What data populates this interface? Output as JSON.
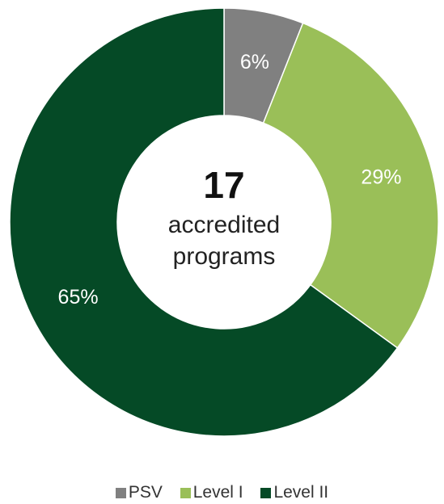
{
  "chart_data": {
    "type": "pie",
    "categories": [
      "PSV",
      "Level I",
      "Level II"
    ],
    "values": [
      6,
      29,
      65
    ],
    "value_labels": [
      "6%",
      "29%",
      "65%"
    ],
    "colors": [
      "#808080",
      "#9ABF58",
      "#054A26"
    ],
    "center_text": {
      "number": "17",
      "line1": "accredited",
      "line2": "programs"
    },
    "legend": [
      {
        "label": "PSV",
        "color": "#808080"
      },
      {
        "label": "Level I",
        "color": "#9ABF58"
      },
      {
        "label": "Level II",
        "color": "#054A26"
      }
    ],
    "legend_position": "bottom"
  }
}
